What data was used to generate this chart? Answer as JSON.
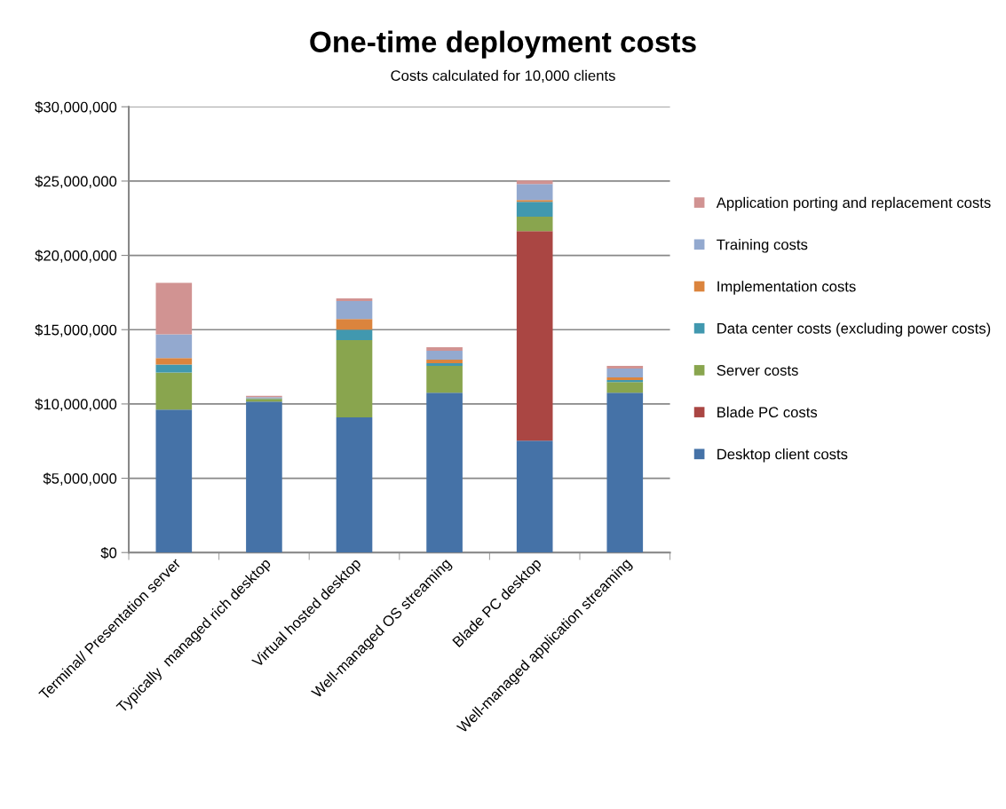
{
  "chart_data": {
    "type": "bar",
    "stacked": true,
    "title": "One-time deployment costs",
    "subtitle": "Costs calculated for 10,000 clients",
    "categories": [
      "Terminal/ Presentation server",
      "Typically  managed rich desktop",
      "Virtual hosted desktop",
      "Well-managed OS streaming",
      "Blade PC desktop",
      "Well-managed application streaming"
    ],
    "series": [
      {
        "name": "Desktop client costs",
        "color": "#4572a7",
        "values": [
          9620000,
          10160000,
          9090000,
          10760000,
          7530000,
          10760000
        ]
      },
      {
        "name": "Blade PC costs",
        "color": "#aa4643",
        "values": [
          0,
          0,
          0,
          0,
          14110000,
          0
        ]
      },
      {
        "name": "Server costs",
        "color": "#89a54e",
        "values": [
          2500000,
          180000,
          5200000,
          1800000,
          960000,
          720000
        ]
      },
      {
        "name": "Data center costs (excluding power costs)",
        "color": "#4198af",
        "values": [
          540000,
          40000,
          710000,
          180000,
          1000000,
          120000
        ]
      },
      {
        "name": "Implementation costs",
        "color": "#db843d",
        "values": [
          420000,
          20000,
          720000,
          240000,
          130000,
          180000
        ]
      },
      {
        "name": "Training costs",
        "color": "#93a9cf",
        "values": [
          1600000,
          60000,
          1200000,
          600000,
          1070000,
          600000
        ]
      },
      {
        "name": "Application porting and replacement costs",
        "color": "#d19392",
        "values": [
          3470000,
          80000,
          180000,
          240000,
          240000,
          180000
        ]
      }
    ],
    "ylim": [
      0,
      30000000
    ],
    "yticks": [
      {
        "value": 0,
        "label": "$0"
      },
      {
        "value": 5000000,
        "label": "$5,000,000"
      },
      {
        "value": 10000000,
        "label": "$10,000,000"
      },
      {
        "value": 15000000,
        "label": "$15,000,000"
      },
      {
        "value": 20000000,
        "label": "$20,000,000"
      },
      {
        "value": 25000000,
        "label": "$25,000,000"
      },
      {
        "value": 30000000,
        "label": "$30,000,000"
      }
    ],
    "grid": "y",
    "legend": "right"
  }
}
